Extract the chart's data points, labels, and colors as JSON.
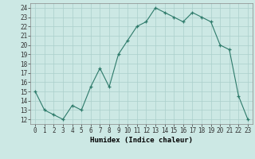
{
  "x": [
    0,
    1,
    2,
    3,
    4,
    5,
    6,
    7,
    8,
    9,
    10,
    11,
    12,
    13,
    14,
    15,
    16,
    17,
    18,
    19,
    20,
    21,
    22,
    23
  ],
  "y": [
    15,
    13,
    12.5,
    12,
    13.5,
    13,
    15.5,
    17.5,
    15.5,
    19,
    20.5,
    22,
    22.5,
    24,
    23.5,
    23,
    22.5,
    23.5,
    23,
    22.5,
    20,
    19.5,
    14.5,
    12
  ],
  "line_color": "#2d7a6a",
  "marker": "+",
  "bg_color": "#cce8e4",
  "grid_color": "#aacfcb",
  "xlabel": "Humidex (Indice chaleur)",
  "xlim": [
    -0.5,
    23.5
  ],
  "ylim": [
    11.5,
    24.5
  ],
  "yticks": [
    12,
    13,
    14,
    15,
    16,
    17,
    18,
    19,
    20,
    21,
    22,
    23,
    24
  ],
  "xticks": [
    0,
    1,
    2,
    3,
    4,
    5,
    6,
    7,
    8,
    9,
    10,
    11,
    12,
    13,
    14,
    15,
    16,
    17,
    18,
    19,
    20,
    21,
    22,
    23
  ],
  "tick_label_fontsize": 5.5,
  "xlabel_fontsize": 6.5,
  "linewidth": 0.8,
  "markersize": 3.5
}
